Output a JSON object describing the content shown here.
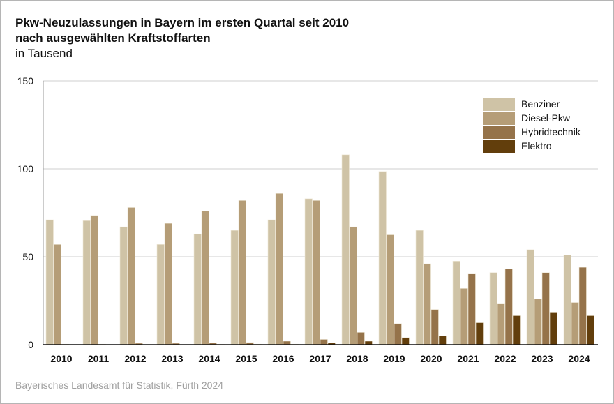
{
  "chart_data": {
    "type": "bar",
    "title": "Pkw-Neuzulassungen in Bayern im ersten Quartal seit 2010",
    "subtitle_line2": "nach ausgewählten Kraftstoffarten",
    "unit": "in Tausend",
    "xlabel": "",
    "ylabel": "",
    "ylim": [
      0,
      150
    ],
    "yticks": [
      0,
      50,
      100,
      150
    ],
    "grid": true,
    "legend_position": "top-right",
    "categories": [
      "2010",
      "2011",
      "2012",
      "2013",
      "2014",
      "2015",
      "2016",
      "2017",
      "2018",
      "2019",
      "2020",
      "2021",
      "2022",
      "2023",
      "2024"
    ],
    "series": [
      {
        "name": "Benziner",
        "color": "#cfc3a6",
        "values": [
          71,
          70.5,
          67,
          57,
          63,
          65,
          71,
          83,
          108,
          98.5,
          65,
          47.5,
          41,
          54,
          51
        ]
      },
      {
        "name": "Diesel-Pkw",
        "color": "#b59d77",
        "values": [
          57,
          73.5,
          78,
          69,
          76,
          82,
          86,
          82,
          67,
          62.5,
          46,
          32,
          23.5,
          26,
          24
        ]
      },
      {
        "name": "Hybridtechnik",
        "color": "#95734a",
        "values": [
          0.3,
          0.3,
          0.8,
          0.8,
          1,
          1.2,
          2,
          3,
          7,
          12,
          20,
          40.5,
          43,
          41,
          44
        ]
      },
      {
        "name": "Elektro",
        "color": "#623e0c",
        "values": [
          0,
          0,
          0,
          0,
          0.2,
          0.3,
          0.3,
          1,
          2,
          4,
          5,
          12.5,
          16.5,
          18.5,
          16.5
        ]
      }
    ],
    "source": "Bayerisches Landesamt für Statistik, Fürth 2024"
  }
}
